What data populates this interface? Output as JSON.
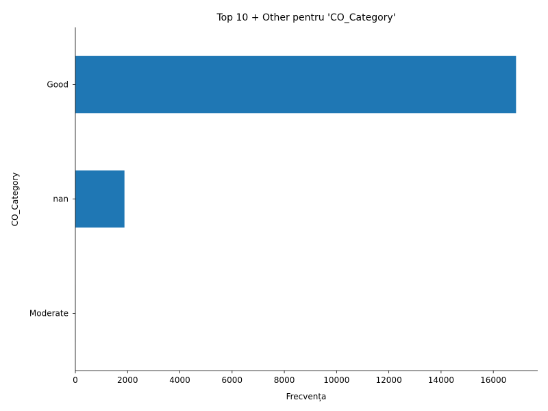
{
  "chart_data": {
    "type": "bar",
    "orientation": "horizontal",
    "title": "Top 10 + Other pentru 'CO_Category'",
    "xlabel": "Frecvența",
    "ylabel": "CO_Category",
    "categories": [
      "Good",
      "nan",
      "Moderate"
    ],
    "values": [
      16870,
      1880,
      2
    ],
    "xlim": [
      0,
      17700
    ],
    "xticks": [
      0,
      2000,
      4000,
      6000,
      8000,
      10000,
      12000,
      14000,
      16000
    ],
    "bar_color": "#1f77b4",
    "grid": false,
    "legend": "none"
  }
}
